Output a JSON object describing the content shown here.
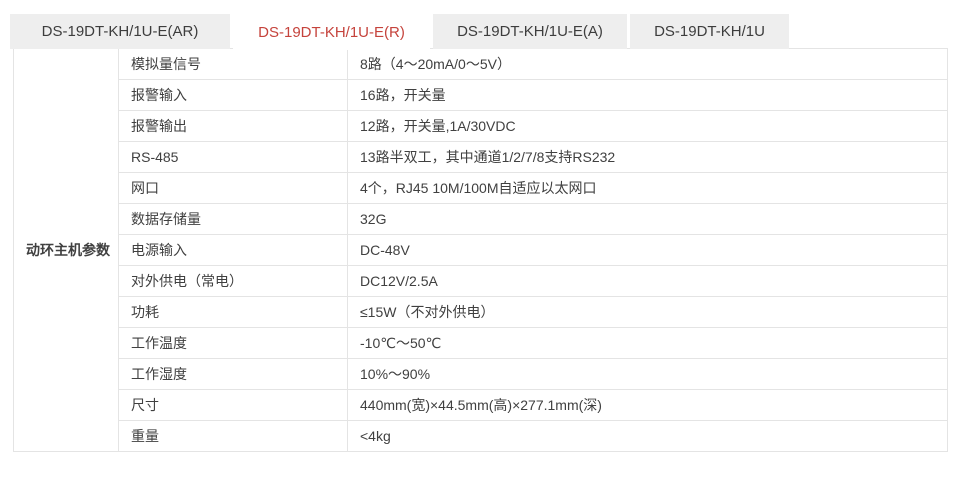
{
  "tabs": [
    {
      "label": "DS-19DT-KH/1U-E(AR)",
      "active": false
    },
    {
      "label": "DS-19DT-KH/1U-E(R)",
      "active": true
    },
    {
      "label": "DS-19DT-KH/1U-E(A)",
      "active": false
    },
    {
      "label": "DS-19DT-KH/1U",
      "active": false
    }
  ],
  "colors": {
    "active_tab_text": "#c5433c",
    "inactive_tab_bg": "#eeeeee",
    "table_border": "#e4e4e4",
    "text": "#404040"
  },
  "spec_table": {
    "group_label": "动环主机参数",
    "rows": [
      {
        "name": "模拟量信号",
        "value": "8路（4～20mA/0～5V）"
      },
      {
        "name": "报警输入",
        "value": "16路，开关量"
      },
      {
        "name": "报警输出",
        "value": "12路，开关量,1A/30VDC"
      },
      {
        "name": "RS-485",
        "value": "13路半双工，其中通道1/2/7/8支持RS232"
      },
      {
        "name": "网口",
        "value": "4个，RJ45 10M/100M自适应以太网口"
      },
      {
        "name": "数据存储量",
        "value": "32G"
      },
      {
        "name": "电源输入",
        "value": "DC-48V"
      },
      {
        "name": "对外供电（常电）",
        "value": "DC12V/2.5A"
      },
      {
        "name": "功耗",
        "value": "≤15W（不对外供电）"
      },
      {
        "name": "工作温度",
        "value": "-10℃～50℃"
      },
      {
        "name": "工作湿度",
        "value": "10%～90%"
      },
      {
        "name": "尺寸",
        "value": "440mm(宽)×44.5mm(高)×277.1mm(深)"
      },
      {
        "name": "重量",
        "value": "<4kg"
      }
    ]
  }
}
